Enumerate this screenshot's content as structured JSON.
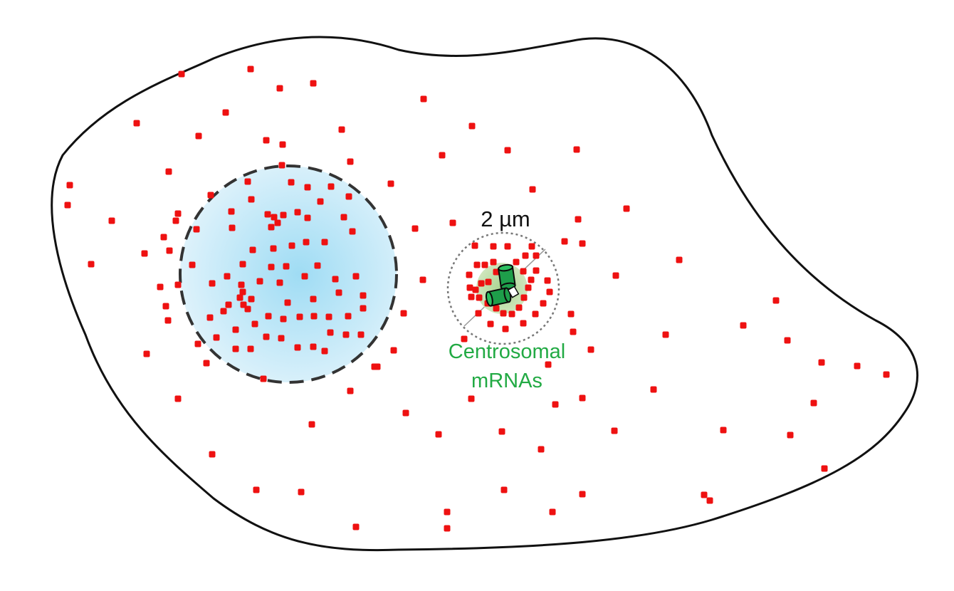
{
  "labels": {
    "scale": "2 µm",
    "centrosome_line1": "Centrosomal",
    "centrosome_line2": "mRNAs"
  },
  "colors": {
    "membrane": "#111111",
    "nucleus_center": "#9fdcf4",
    "nucleus_edge": "#dff3fb",
    "nucleus_border": "#333333",
    "mrna": "#ee1111",
    "centrosome_halo": "#b9dca0",
    "centriole": "#1e9e4a",
    "label": "#22aa44",
    "scale_circle": "#777777",
    "scale_text": "#111111"
  }
}
